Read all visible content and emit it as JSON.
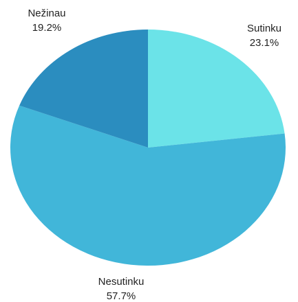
{
  "chart_data": {
    "type": "pie",
    "categories": [
      "Sutinku",
      "Nesutinku",
      "Nežinau"
    ],
    "values": [
      23.1,
      57.7,
      19.2
    ],
    "value_labels": [
      "23.1%",
      "57.7%",
      "19.2%"
    ],
    "colors": [
      "#6be3e8",
      "#41b6d9",
      "#2b8dbf"
    ]
  }
}
